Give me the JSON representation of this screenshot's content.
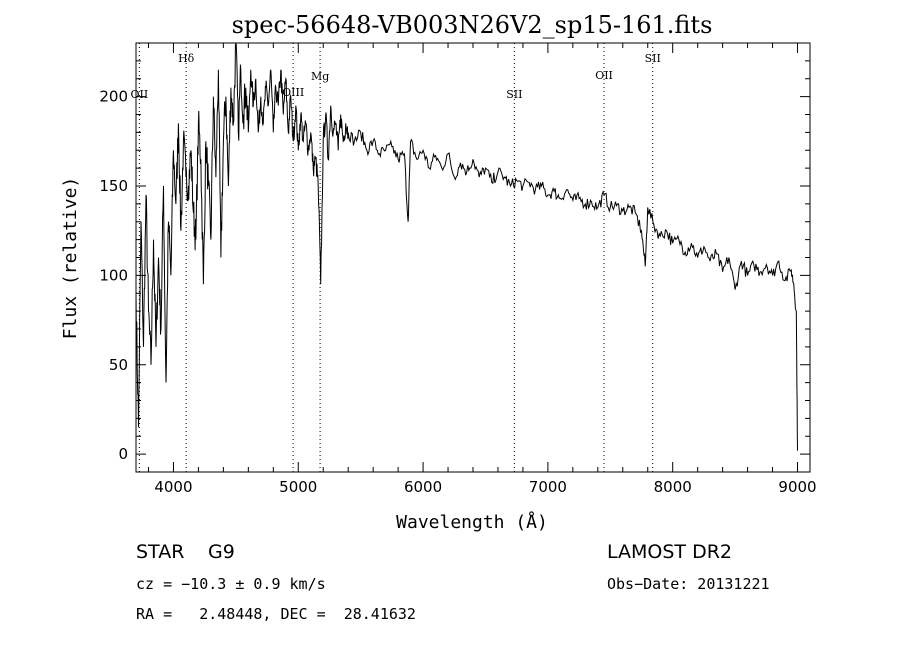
{
  "chart_data": {
    "type": "line",
    "title": "spec-56648-VB003N26V2_sp15-161.fits",
    "xlabel": "Wavelength (Å)",
    "ylabel": "Flux (relative)",
    "xlim": [
      3700,
      9100
    ],
    "ylim": [
      -10,
      230
    ],
    "xticks": [
      "4000",
      "5000",
      "6000",
      "7000",
      "8000",
      "9000"
    ],
    "yticks": [
      "0",
      "50",
      "100",
      "150",
      "200"
    ],
    "series": [
      {
        "x": [
          3700,
          3720,
          3740,
          3760,
          3780,
          3800,
          3820,
          3840,
          3860,
          3880,
          3900,
          3920,
          3940,
          3960,
          3980,
          4000,
          4020,
          4040,
          4060,
          4080,
          4100,
          4120,
          4140,
          4160,
          4180,
          4200,
          4220,
          4240,
          4260,
          4280,
          4300,
          4320,
          4340,
          4360,
          4380,
          4400,
          4420,
          4440,
          4460,
          4480,
          4500,
          4520,
          4540,
          4560,
          4580,
          4600,
          4620,
          4640,
          4660,
          4680,
          4700,
          4720,
          4740,
          4760,
          4780,
          4800,
          4820,
          4840,
          4860,
          4880,
          4900,
          4920,
          4940,
          4960,
          4980,
          5000,
          5020,
          5040,
          5060,
          5080,
          5100,
          5120,
          5140,
          5160,
          5180,
          5200,
          5220,
          5240,
          5260,
          5280,
          5300,
          5320,
          5340,
          5360,
          5380,
          5400,
          5450,
          5500,
          5550,
          5600,
          5650,
          5700,
          5750,
          5800,
          5850,
          5880,
          5900,
          5950,
          6000,
          6050,
          6100,
          6150,
          6200,
          6250,
          6300,
          6350,
          6400,
          6450,
          6500,
          6550,
          6600,
          6650,
          6700,
          6750,
          6800,
          6850,
          6900,
          6950,
          7000,
          7050,
          7100,
          7150,
          7200,
          7250,
          7300,
          7350,
          7400,
          7450,
          7500,
          7550,
          7600,
          7650,
          7700,
          7750,
          7780,
          7800,
          7850,
          7900,
          7950,
          8000,
          8050,
          8100,
          8150,
          8200,
          8250,
          8300,
          8350,
          8400,
          8450,
          8500,
          8550,
          8600,
          8650,
          8700,
          8750,
          8800,
          8850,
          8900,
          8950,
          8970,
          8990,
          9000
        ],
        "y": [
          90,
          15,
          130,
          60,
          145,
          80,
          50,
          120,
          60,
          110,
          70,
          150,
          40,
          130,
          100,
          170,
          140,
          185,
          125,
          175,
          155,
          150,
          170,
          135,
          120,
          185,
          165,
          95,
          175,
          150,
          120,
          200,
          155,
          215,
          110,
          175,
          200,
          150,
          205,
          185,
          230,
          180,
          215,
          190,
          205,
          180,
          215,
          195,
          210,
          180,
          200,
          185,
          205,
          195,
          215,
          180,
          205,
          195,
          215,
          190,
          210,
          180,
          200,
          175,
          195,
          170,
          190,
          175,
          185,
          170,
          180,
          160,
          165,
          150,
          95,
          175,
          190,
          165,
          195,
          180,
          185,
          170,
          190,
          175,
          185,
          180,
          175,
          180,
          170,
          175,
          168,
          170,
          172,
          165,
          168,
          130,
          175,
          165,
          170,
          160,
          167,
          160,
          168,
          155,
          163,
          158,
          165,
          155,
          160,
          152,
          158,
          155,
          150,
          153,
          150,
          152,
          148,
          150,
          145,
          147,
          143,
          148,
          142,
          143,
          140,
          141,
          138,
          145,
          138,
          139,
          136,
          138,
          135,
          125,
          105,
          138,
          128,
          122,
          125,
          118,
          120,
          113,
          118,
          110,
          116,
          108,
          112,
          102,
          110,
          92,
          108,
          100,
          106,
          102,
          106,
          100,
          108,
          97,
          103,
          95,
          80,
          2
        ]
      }
    ],
    "line_markers": [
      {
        "label": "OII",
        "x": 3727
      },
      {
        "label": "Hδ",
        "x": 4102
      },
      {
        "label": "OIII",
        "x": 4959
      },
      {
        "label": "Mg",
        "x": 5175
      },
      {
        "label": "SII",
        "x": 6731
      },
      {
        "label": "OII",
        "x": 7450
      },
      {
        "label": "SII",
        "x": 7840
      }
    ]
  },
  "info": {
    "object_type": "STAR",
    "subclass": "G9",
    "survey": "LAMOST DR2",
    "cz": "cz = −10.3 ± 0.9 km/s",
    "obs_date": "Obs−Date: 20131221",
    "coords": "RA =   2.48448, DEC =  28.41632"
  }
}
